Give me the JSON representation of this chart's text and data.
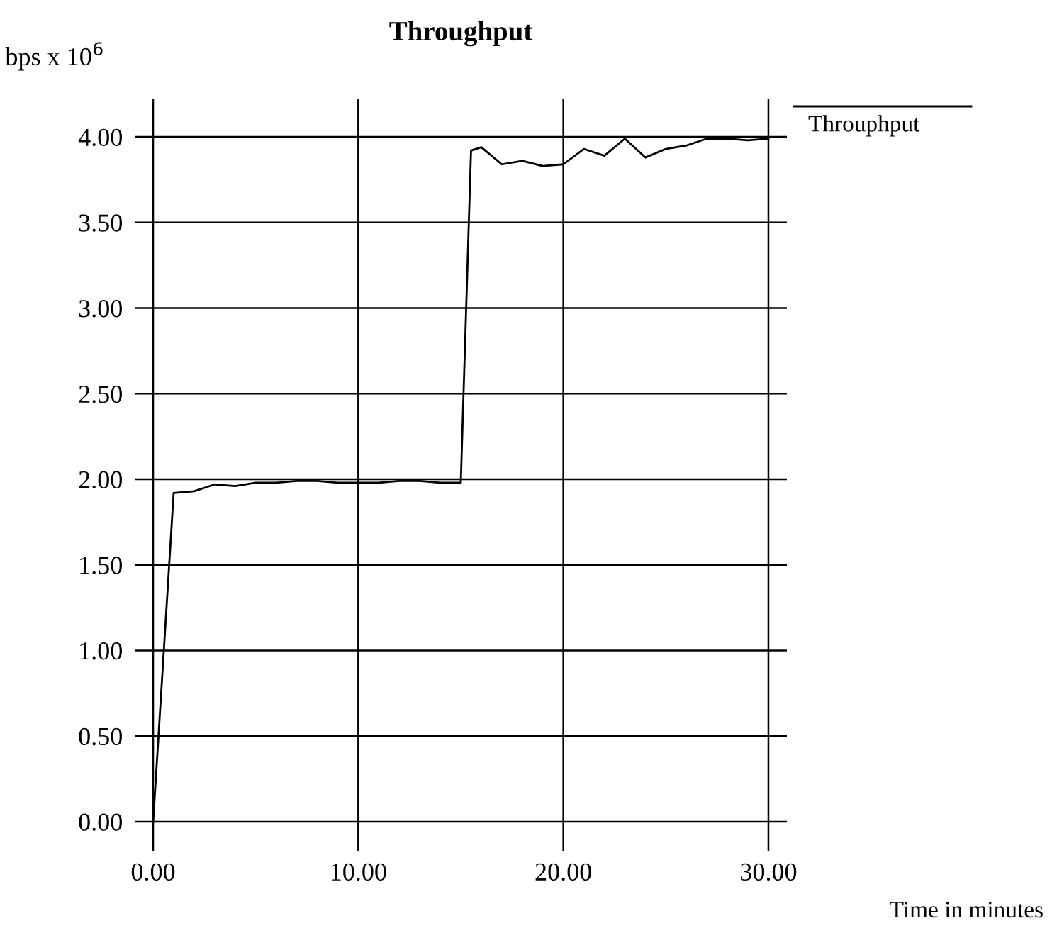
{
  "chart_data": {
    "type": "line",
    "title": "Throughput",
    "ylabel": "bps x 10$^{6}$",
    "xlabel": "Time in minutes",
    "x": [
      0,
      1,
      2,
      3,
      4,
      5,
      6,
      7,
      8,
      9,
      10,
      11,
      12,
      13,
      14,
      15,
      15.5,
      16,
      17,
      18,
      19,
      20,
      21,
      22,
      23,
      24,
      25,
      26,
      27,
      28,
      29,
      30
    ],
    "series": [
      {
        "name": "Throuphput",
        "color": "#000000",
        "values": [
          0,
          1.92,
          1.93,
          1.97,
          1.96,
          1.98,
          1.98,
          1.99,
          1.99,
          1.98,
          1.98,
          1.98,
          1.99,
          1.99,
          1.98,
          1.98,
          3.92,
          3.94,
          3.84,
          3.86,
          3.83,
          3.84,
          3.93,
          3.89,
          3.99,
          3.88,
          3.93,
          3.95,
          3.99,
          3.99,
          3.98,
          3.99
        ]
      }
    ],
    "xlim": [
      -0.9,
      30.9
    ],
    "ylim": [
      -0.17,
      4.22
    ],
    "xticks": [
      {
        "value": 0,
        "label": "0.00"
      },
      {
        "value": 10,
        "label": "10.00"
      },
      {
        "value": 20,
        "label": "20.00"
      },
      {
        "value": 30,
        "label": "30.00"
      }
    ],
    "yticks": [
      {
        "value": 0,
        "label": "0.00"
      },
      {
        "value": 0.5,
        "label": "0.50"
      },
      {
        "value": 1,
        "label": "1.00"
      },
      {
        "value": 1.5,
        "label": "1.50"
      },
      {
        "value": 2,
        "label": "2.00"
      },
      {
        "value": 2.5,
        "label": "2.50"
      },
      {
        "value": 3,
        "label": "3.00"
      },
      {
        "value": 3.5,
        "label": "3.50"
      },
      {
        "value": 4,
        "label": "4.00"
      }
    ],
    "grid": true,
    "legend": "top right",
    "marker": "none",
    "line_style": "solid"
  }
}
